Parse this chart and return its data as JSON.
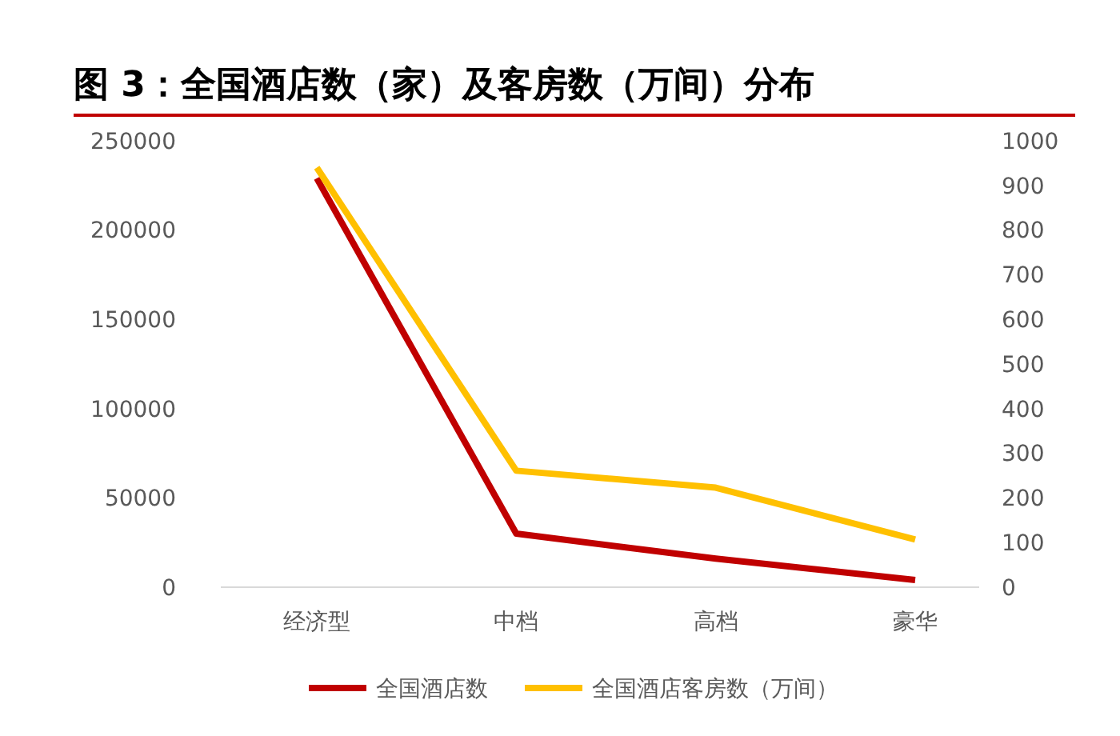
{
  "chart_data": {
    "type": "line",
    "title": "图 3：全国酒店数（家）及客房数（万间）分布",
    "categories": [
      "经济型",
      "中档",
      "高档",
      "豪华"
    ],
    "series": [
      {
        "name": "全国酒店数",
        "color": "#c00000",
        "values": [
          229000,
          30000,
          16000,
          4000
        ]
      },
      {
        "name": "全国酒店客房数（万间）",
        "color": "#ffc000",
        "values": [
          940,
          261,
          223,
          107
        ],
        "axis": "y2"
      }
    ],
    "ylim": [
      0,
      250000
    ],
    "yticks": [
      0,
      50000,
      100000,
      150000,
      200000,
      250000
    ],
    "y2lim": [
      0,
      1000
    ],
    "y2ticks": [
      0,
      100,
      200,
      300,
      400,
      500,
      600,
      700,
      800,
      900,
      1000
    ],
    "legend": "bottom",
    "grid": false,
    "marker": "none",
    "line_style": "solid"
  }
}
